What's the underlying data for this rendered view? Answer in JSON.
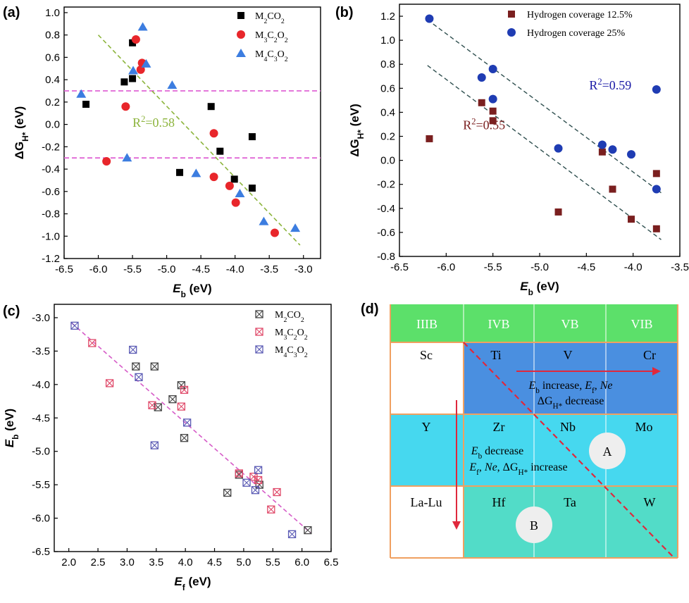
{
  "chart_data": [
    {
      "panel": "(a)",
      "type": "scatter",
      "xlabel": "E",
      "xlabel_sub": "b",
      "xlabel_unit": " (eV)",
      "ylabel": "ΔG",
      "ylabel_sub": "H*",
      "ylabel_unit": " (eV)",
      "xlim": [
        -6.5,
        -2.75
      ],
      "ylim": [
        -1.2,
        1.05
      ],
      "xticks": [
        -6.5,
        -6.0,
        -5.5,
        -5.0,
        -4.5,
        -4.0,
        -3.5,
        -3.0
      ],
      "yticks": [
        -1.2,
        -1.0,
        -0.8,
        -0.6,
        -0.4,
        -0.2,
        0.0,
        0.2,
        0.4,
        0.6,
        0.8,
        1.0
      ],
      "hlines": [
        0.3,
        -0.3
      ],
      "fit_line": {
        "x": [
          -6.0,
          -3.05
        ],
        "y": [
          0.8,
          -1.08
        ]
      },
      "annotation": "R²=0.58",
      "annotation_x": -5.5,
      "annotation_y": -0.02,
      "series": [
        {
          "name": "M₂CO₂",
          "marker": "square",
          "color": "#000000",
          "points": [
            [
              -6.18,
              0.18
            ],
            [
              -5.62,
              0.38
            ],
            [
              -5.5,
              0.41
            ],
            [
              -5.5,
              0.73
            ],
            [
              -4.81,
              -0.43
            ],
            [
              -4.35,
              0.16
            ],
            [
              -4.22,
              -0.24
            ],
            [
              -4.01,
              -0.49
            ],
            [
              -3.75,
              -0.57
            ],
            [
              -3.75,
              -0.11
            ]
          ]
        },
        {
          "name": "M₃C₂O₂",
          "marker": "circle",
          "color": "#e8262b",
          "points": [
            [
              -5.88,
              -0.33
            ],
            [
              -5.6,
              0.16
            ],
            [
              -5.45,
              0.76
            ],
            [
              -5.38,
              0.49
            ],
            [
              -5.36,
              0.55
            ],
            [
              -4.31,
              -0.47
            ],
            [
              -4.31,
              -0.08
            ],
            [
              -4.08,
              -0.55
            ],
            [
              -3.99,
              -0.7
            ],
            [
              -3.42,
              -0.97
            ]
          ]
        },
        {
          "name": "M₄C₃O₂",
          "marker": "triangle",
          "color": "#3c7de0",
          "points": [
            [
              -6.25,
              0.27
            ],
            [
              -5.58,
              -0.3
            ],
            [
              -5.49,
              0.48
            ],
            [
              -5.35,
              0.87
            ],
            [
              -5.3,
              0.54
            ],
            [
              -4.92,
              0.35
            ],
            [
              -4.57,
              -0.44
            ],
            [
              -3.93,
              -0.62
            ],
            [
              -3.58,
              -0.87
            ],
            [
              -3.12,
              -0.93
            ]
          ]
        }
      ]
    },
    {
      "panel": "(b)",
      "type": "scatter",
      "xlabel": "E",
      "xlabel_sub": "b",
      "xlabel_unit": " (eV)",
      "ylabel": "ΔG",
      "ylabel_sub": "H*",
      "ylabel_unit": " (eV)",
      "xlim": [
        -6.5,
        -3.5
      ],
      "ylim": [
        -0.8,
        1.3
      ],
      "xticks": [
        -6.5,
        -6.0,
        -5.5,
        -5.0,
        -4.5,
        -4.0,
        -3.5
      ],
      "yticks": [
        -0.8,
        -0.6,
        -0.4,
        -0.2,
        0.0,
        0.2,
        0.4,
        0.6,
        0.8,
        1.0,
        1.2
      ],
      "fit_lines": [
        {
          "x": [
            -6.2,
            -3.7
          ],
          "y": [
            1.17,
            -0.27
          ]
        },
        {
          "x": [
            -6.2,
            -3.7
          ],
          "y": [
            0.79,
            -0.66
          ]
        }
      ],
      "annotations": [
        {
          "text": "R²=0.59",
          "x": -4.47,
          "y": 0.59,
          "color": "#1a1aa6"
        },
        {
          "text": "R²=0.55",
          "x": -5.82,
          "y": 0.26,
          "color": "#7a1f1f"
        }
      ],
      "series": [
        {
          "name": "Hydrogen coverage 12.5%",
          "marker": "square",
          "color": "#7a1f1f",
          "points": [
            [
              -6.18,
              0.18
            ],
            [
              -5.62,
              0.48
            ],
            [
              -5.5,
              0.41
            ],
            [
              -5.5,
              0.33
            ],
            [
              -4.8,
              -0.43
            ],
            [
              -4.33,
              0.07
            ],
            [
              -4.22,
              -0.24
            ],
            [
              -4.02,
              -0.49
            ],
            [
              -3.75,
              -0.57
            ],
            [
              -3.75,
              -0.11
            ]
          ]
        },
        {
          "name": "Hydrogen coverage 25%",
          "marker": "circle",
          "color": "#1f3cb3",
          "points": [
            [
              -6.18,
              1.18
            ],
            [
              -5.62,
              0.69
            ],
            [
              -5.5,
              0.76
            ],
            [
              -5.5,
              0.51
            ],
            [
              -4.8,
              0.1
            ],
            [
              -4.33,
              0.13
            ],
            [
              -4.22,
              0.09
            ],
            [
              -4.02,
              0.05
            ],
            [
              -3.75,
              -0.24
            ],
            [
              -3.75,
              0.59
            ]
          ]
        }
      ]
    },
    {
      "panel": "(c)",
      "type": "scatter",
      "xlabel": "E",
      "xlabel_sub": "f",
      "xlabel_unit": " (eV)",
      "ylabel": "E",
      "ylabel_sub": "b",
      "ylabel_unit": " (eV)",
      "xlim": [
        1.75,
        6.5
      ],
      "ylim": [
        -6.5,
        -2.8
      ],
      "xticks": [
        2.0,
        2.5,
        3.0,
        3.5,
        4.0,
        4.5,
        5.0,
        5.5,
        6.0,
        6.5
      ],
      "yticks": [
        -6.5,
        -6.0,
        -5.5,
        -5.0,
        -4.5,
        -4.0,
        -3.5,
        -3.0
      ],
      "fit_line": {
        "x": [
          2.05,
          6.15
        ],
        "y": [
          -3.08,
          -6.22
        ]
      },
      "series": [
        {
          "name": "M₂CO₂",
          "marker": "xsquare",
          "color": "#444444",
          "points": [
            [
              3.15,
              -3.73
            ],
            [
              3.47,
              -3.73
            ],
            [
              3.78,
              -4.22
            ],
            [
              3.93,
              -4.01
            ],
            [
              3.98,
              -4.8
            ],
            [
              3.53,
              -4.34
            ],
            [
              4.72,
              -5.62
            ],
            [
              4.92,
              -5.35
            ],
            [
              5.27,
              -5.5
            ],
            [
              6.1,
              -6.18
            ]
          ]
        },
        {
          "name": "M₃C₂O₂",
          "marker": "xsquare",
          "color": "#e04a6a",
          "points": [
            [
              2.4,
              -3.38
            ],
            [
              2.7,
              -3.98
            ],
            [
              3.43,
              -4.31
            ],
            [
              3.93,
              -4.33
            ],
            [
              3.98,
              -4.08
            ],
            [
              4.92,
              -5.33
            ],
            [
              5.17,
              -5.38
            ],
            [
              5.25,
              -5.43
            ],
            [
              5.47,
              -5.87
            ],
            [
              5.57,
              -5.61
            ]
          ]
        },
        {
          "name": "M₄C₃O₂",
          "marker": "xsquare",
          "color": "#5a5ab4",
          "points": [
            [
              2.1,
              -3.12
            ],
            [
              3.1,
              -3.48
            ],
            [
              3.2,
              -3.89
            ],
            [
              3.47,
              -4.91
            ],
            [
              4.03,
              -4.57
            ],
            [
              5.05,
              -5.47
            ],
            [
              5.2,
              -5.58
            ],
            [
              5.25,
              -5.28
            ],
            [
              5.83,
              -6.24
            ]
          ]
        }
      ]
    }
  ],
  "panel_d": {
    "label": "(d)",
    "groups": [
      "IIIB",
      "IVB",
      "VB",
      "VIB"
    ],
    "rows": [
      [
        "Sc",
        "Ti",
        "V",
        "Cr"
      ],
      [
        "Y",
        "Zr",
        "Nb",
        "Mo"
      ],
      [
        "La-Lu",
        "Hf",
        "Ta",
        "W"
      ]
    ],
    "trend_right": {
      "line1_main": "E",
      "line1_sub": "b",
      "line1_rest": " increase, ",
      "line1_e": "E",
      "line1_e_sub": "f",
      "line1_ne": "Ne",
      "line2": "ΔG",
      "line2_sub": "H*",
      "line2_rest": " decrease"
    },
    "trend_down": {
      "line1_main": "E",
      "line1_sub": "b",
      "line1_rest": " decrease",
      "line2_e": "E",
      "line2_e_sub": "f",
      "line2_ne": "Ne",
      "line2_g": "ΔG",
      "line2_g_sub": "H*",
      "line2_rest": " increase"
    },
    "circle_a": "A",
    "circle_b": "B",
    "colors": {
      "header": "#5ce06a",
      "row1": "#4a8fe0",
      "row2": "#46d8ef",
      "row3": "#52dcc8",
      "border": "#f0a060",
      "arrow": "#e0283c"
    }
  }
}
